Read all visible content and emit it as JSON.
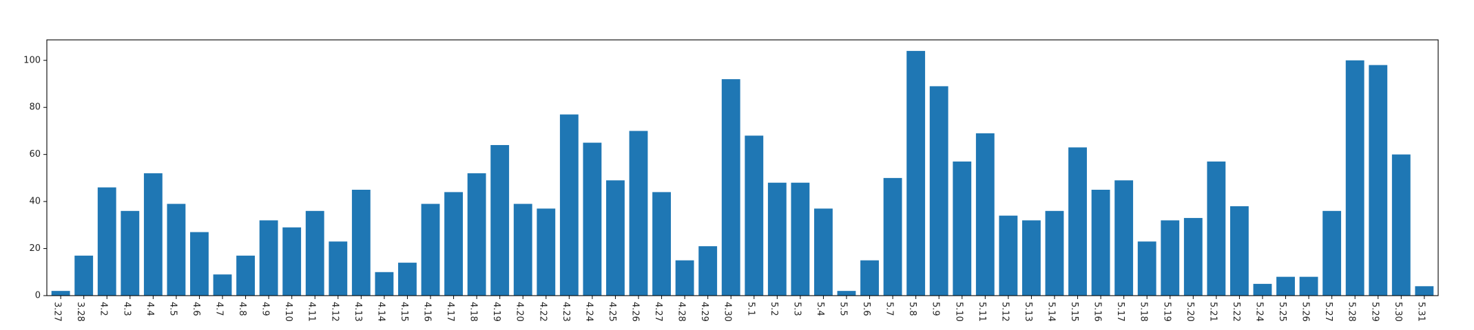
{
  "chart_data": {
    "type": "bar",
    "title": "",
    "xlabel": "",
    "ylabel": "",
    "ylim": [
      0,
      108.7
    ],
    "yticks": [
      0,
      20,
      40,
      60,
      80,
      100
    ],
    "grid": false,
    "legend": "none",
    "bar_color": "#1f77b4",
    "categories": [
      "3.27",
      "3.28",
      "4.2",
      "4.3",
      "4.4",
      "4.5",
      "4.6",
      "4.7",
      "4.8",
      "4.9",
      "4.10",
      "4.11",
      "4.12",
      "4.13",
      "4.14",
      "4.15",
      "4.16",
      "4.17",
      "4.18",
      "4.19",
      "4.20",
      "4.22",
      "4.23",
      "4.24",
      "4.25",
      "4.26",
      "4.27",
      "4.28",
      "4.29",
      "4.30",
      "5.1",
      "5.2",
      "5.3",
      "5.4",
      "5.5",
      "5.6",
      "5.7",
      "5.8",
      "5.9",
      "5.10",
      "5.11",
      "5.12",
      "5.13",
      "5.14",
      "5.15",
      "5.16",
      "5.17",
      "5.18",
      "5.19",
      "5.20",
      "5.21",
      "5.22",
      "5.24",
      "5.25",
      "5.26",
      "5.27",
      "5.28",
      "5.29",
      "5.30",
      "5.31"
    ],
    "values": [
      2,
      17,
      46,
      36,
      52,
      39,
      27,
      9,
      17,
      32,
      29,
      36,
      23,
      45,
      10,
      14,
      39,
      44,
      52,
      64,
      39,
      37,
      77,
      65,
      49,
      70,
      44,
      15,
      21,
      92,
      68,
      48,
      48,
      37,
      2,
      15,
      50,
      104,
      89,
      57,
      69,
      34,
      32,
      36,
      63,
      45,
      49,
      23,
      32,
      33,
      57,
      38,
      5,
      8,
      8,
      36,
      100,
      98,
      60,
      4
    ]
  }
}
